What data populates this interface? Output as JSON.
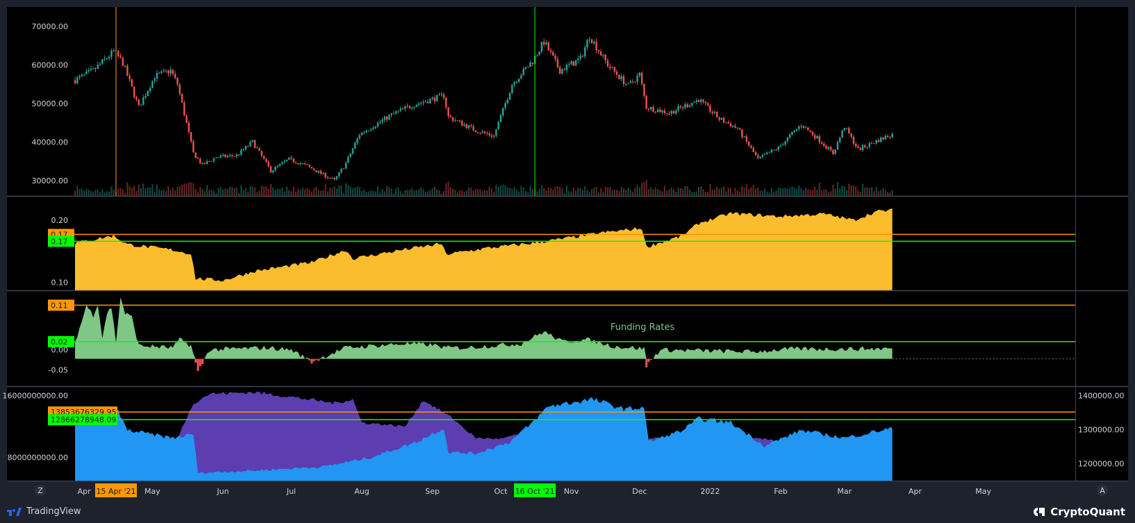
{
  "colors": {
    "background": "#000000",
    "frame": "#1e222d",
    "separator": "#434651",
    "candle_up": "#26a69a",
    "candle_down": "#ef5350",
    "orange": "#ff9800",
    "green": "#00ff00",
    "yellow_fill": "#fbbd2e",
    "funding_fill": "#7ec784",
    "funding_neg": "#ef5350",
    "blue_fill": "#2196f3",
    "purple_fill": "#5c3eb0",
    "annotation_text": "#7ec784"
  },
  "chart_data": [
    {
      "type": "candlestick",
      "name": "price",
      "x_range": [
        "2021-03-28",
        "2022-05-31"
      ],
      "ylim": [
        26000,
        75000
      ],
      "yticks": [
        "70000.00",
        "60000.00",
        "50000.00",
        "40000.00",
        "30000.00"
      ],
      "ytick_values": [
        70000,
        60000,
        50000,
        40000,
        30000
      ],
      "close_anchors": [
        [
          "2021-03-28",
          56000
        ],
        [
          "2021-04-05",
          58500
        ],
        [
          "2021-04-14",
          63500
        ],
        [
          "2021-04-18",
          60500
        ],
        [
          "2021-04-25",
          49000
        ],
        [
          "2021-05-02",
          57000
        ],
        [
          "2021-05-09",
          58500
        ],
        [
          "2021-05-12",
          55000
        ],
        [
          "2021-05-19",
          37000
        ],
        [
          "2021-05-23",
          34000
        ],
        [
          "2021-05-29",
          36000
        ],
        [
          "2021-06-07",
          36500
        ],
        [
          "2021-06-14",
          40000
        ],
        [
          "2021-06-22",
          32500
        ],
        [
          "2021-06-30",
          35500
        ],
        [
          "2021-07-07",
          34000
        ],
        [
          "2021-07-20",
          30000
        ],
        [
          "2021-07-25",
          34500
        ],
        [
          "2021-07-31",
          42000
        ],
        [
          "2021-08-07",
          44500
        ],
        [
          "2021-08-14",
          47000
        ],
        [
          "2021-08-23",
          49500
        ],
        [
          "2021-09-06",
          52000
        ],
        [
          "2021-09-08",
          46500
        ],
        [
          "2021-09-20",
          43000
        ],
        [
          "2021-09-28",
          41500
        ],
        [
          "2021-10-06",
          55000
        ],
        [
          "2021-10-15",
          61000
        ],
        [
          "2021-10-20",
          66000
        ],
        [
          "2021-10-27",
          58500
        ],
        [
          "2021-11-05",
          61500
        ],
        [
          "2021-11-09",
          67500
        ],
        [
          "2021-11-17",
          60000
        ],
        [
          "2021-11-26",
          54500
        ],
        [
          "2021-12-01",
          57500
        ],
        [
          "2021-12-04",
          49000
        ],
        [
          "2021-12-14",
          47500
        ],
        [
          "2021-12-27",
          51000
        ],
        [
          "2022-01-05",
          46000
        ],
        [
          "2022-01-13",
          43500
        ],
        [
          "2022-01-22",
          35500
        ],
        [
          "2022-01-31",
          38500
        ],
        [
          "2022-02-10",
          44500
        ],
        [
          "2022-02-18",
          40500
        ],
        [
          "2022-02-24",
          37000
        ],
        [
          "2022-03-01",
          44000
        ],
        [
          "2022-03-07",
          38000
        ],
        [
          "2022-03-16",
          40500
        ],
        [
          "2022-03-22",
          42000
        ]
      ],
      "markers": [
        {
          "date": "2021-04-15",
          "label": "15 Apr '21",
          "color": "#ff9800"
        },
        {
          "date": "2021-10-16",
          "label": "16 Oct '21",
          "color": "#00ff00"
        }
      ]
    },
    {
      "type": "area",
      "name": "pane-2",
      "ylim": [
        0.087,
        0.238
      ],
      "yticks": [
        "0.20",
        "0.10"
      ],
      "ytick_values": [
        0.2,
        0.1
      ],
      "reference_lines": [
        {
          "value": 0.177,
          "label": "0.17",
          "color": "#ff9800"
        },
        {
          "value": 0.166,
          "label": "0.17",
          "color": "#00ff00"
        }
      ],
      "anchors": [
        [
          "2021-03-28",
          0.163
        ],
        [
          "2021-04-14",
          0.175
        ],
        [
          "2021-04-20",
          0.161
        ],
        [
          "2021-05-10",
          0.152
        ],
        [
          "2021-05-18",
          0.146
        ],
        [
          "2021-05-20",
          0.106
        ],
        [
          "2021-06-01",
          0.103
        ],
        [
          "2021-06-15",
          0.118
        ],
        [
          "2021-07-10",
          0.132
        ],
        [
          "2021-07-25",
          0.152
        ],
        [
          "2021-07-28",
          0.138
        ],
        [
          "2021-08-20",
          0.153
        ],
        [
          "2021-09-05",
          0.162
        ],
        [
          "2021-09-07",
          0.145
        ],
        [
          "2021-09-25",
          0.155
        ],
        [
          "2021-10-15",
          0.163
        ],
        [
          "2021-11-01",
          0.172
        ],
        [
          "2021-11-15",
          0.18
        ],
        [
          "2021-12-02",
          0.187
        ],
        [
          "2021-12-04",
          0.157
        ],
        [
          "2021-12-20",
          0.175
        ],
        [
          "2021-12-27",
          0.195
        ],
        [
          "2022-01-10",
          0.211
        ],
        [
          "2022-01-31",
          0.206
        ],
        [
          "2022-02-20",
          0.21
        ],
        [
          "2022-03-05",
          0.2
        ],
        [
          "2022-03-15",
          0.214
        ],
        [
          "2022-03-22",
          0.216
        ]
      ]
    },
    {
      "type": "area",
      "name": "Funding Rates",
      "ylim": [
        -0.09,
        0.145
      ],
      "yticks": [
        "0.00",
        "-0.05"
      ],
      "ytick_values": [
        0.0,
        -0.05
      ],
      "reference_lines": [
        {
          "value": 0.11,
          "label": "0.11",
          "color": "#ff9800"
        },
        {
          "value": 0.02,
          "label": "0.02",
          "color": "#00ff00"
        }
      ],
      "baseline": -0.0225,
      "anchors": [
        [
          "2021-03-28",
          0.02
        ],
        [
          "2021-03-31",
          0.07
        ],
        [
          "2021-04-02",
          0.11
        ],
        [
          "2021-04-05",
          0.085
        ],
        [
          "2021-04-07",
          0.115
        ],
        [
          "2021-04-09",
          0.03
        ],
        [
          "2021-04-11",
          0.09
        ],
        [
          "2021-04-13",
          0.105
        ],
        [
          "2021-04-15",
          0.02
        ],
        [
          "2021-04-17",
          0.13
        ],
        [
          "2021-04-19",
          0.09
        ],
        [
          "2021-04-22",
          0.08
        ],
        [
          "2021-04-25",
          0.01
        ],
        [
          "2021-05-10",
          0.005
        ],
        [
          "2021-05-13",
          0.025
        ],
        [
          "2021-05-18",
          0.01
        ],
        [
          "2021-05-21",
          -0.055
        ],
        [
          "2021-05-26",
          0.0
        ],
        [
          "2021-06-20",
          0.005
        ],
        [
          "2021-07-01",
          0.0
        ],
        [
          "2021-07-10",
          -0.03
        ],
        [
          "2021-07-25",
          0.005
        ],
        [
          "2021-08-20",
          0.015
        ],
        [
          "2021-09-01",
          0.012
        ],
        [
          "2021-09-07",
          0.005
        ],
        [
          "2021-09-15",
          0.005
        ],
        [
          "2021-10-10",
          0.015
        ],
        [
          "2021-10-20",
          0.045
        ],
        [
          "2021-10-28",
          0.02
        ],
        [
          "2021-11-08",
          0.025
        ],
        [
          "2021-11-20",
          0.008
        ],
        [
          "2021-12-03",
          0.003
        ],
        [
          "2021-12-04",
          -0.04
        ],
        [
          "2021-12-10",
          0.0
        ],
        [
          "2022-01-20",
          -0.005
        ],
        [
          "2022-02-05",
          0.002
        ],
        [
          "2022-03-01",
          0.002
        ],
        [
          "2022-03-22",
          0.003
        ]
      ],
      "annotation": "Funding Rates"
    },
    {
      "type": "area",
      "name": "pane-4",
      "ylim_left": [
        5000000000,
        17100000000
      ],
      "yticks_left": [
        "16000000000.00",
        "8000000000.00"
      ],
      "ytick_values_left": [
        16000000000,
        8000000000
      ],
      "ylim_right": [
        1150000000,
        1425000000
      ],
      "yticks_right": [
        "1400000.00",
        "1300000.00",
        "1200000.00"
      ],
      "ytick_values_right": [
        1400000000,
        1300000000,
        1200000000
      ],
      "reference_lines": [
        {
          "value": 13853676329.95,
          "label": "13853676329.95",
          "color": "#ff9800"
        },
        {
          "value": 12866278948.09,
          "label": "12866278948.09",
          "color": "#00ff00"
        }
      ],
      "blue_anchors": [
        [
          "2021-03-28",
          12500000000
        ],
        [
          "2021-04-05",
          12800000000
        ],
        [
          "2021-04-15",
          14400000000
        ],
        [
          "2021-04-20",
          11500000000
        ],
        [
          "2021-05-10",
          10500000000
        ],
        [
          "2021-05-19",
          11000000000
        ],
        [
          "2021-05-21",
          6000000000
        ],
        [
          "2021-06-15",
          6300000000
        ],
        [
          "2021-07-15",
          6800000000
        ],
        [
          "2021-08-05",
          8000000000
        ],
        [
          "2021-08-25",
          10000000000
        ],
        [
          "2021-09-06",
          11800000000
        ],
        [
          "2021-09-08",
          8700000000
        ],
        [
          "2021-09-20",
          8500000000
        ],
        [
          "2021-10-05",
          10000000000
        ],
        [
          "2021-10-15",
          12500000000
        ],
        [
          "2021-10-22",
          14600000000
        ],
        [
          "2021-11-10",
          15500000000
        ],
        [
          "2021-11-25",
          14200000000
        ],
        [
          "2021-12-03",
          14500000000
        ],
        [
          "2021-12-05",
          10000000000
        ],
        [
          "2021-12-20",
          11500000000
        ],
        [
          "2021-12-27",
          13000000000
        ],
        [
          "2022-01-10",
          12500000000
        ],
        [
          "2022-01-25",
          9500000000
        ],
        [
          "2022-02-10",
          11500000000
        ],
        [
          "2022-03-01",
          10500000000
        ],
        [
          "2022-03-22",
          11800000000
        ]
      ],
      "purple_anchors": [
        [
          "2021-05-12",
          10500000000
        ],
        [
          "2021-05-19",
          15000000000
        ],
        [
          "2021-05-26",
          16200000000
        ],
        [
          "2021-06-15",
          16400000000
        ],
        [
          "2021-07-01",
          15800000000
        ],
        [
          "2021-07-20",
          15000000000
        ],
        [
          "2021-07-28",
          15500000000
        ],
        [
          "2021-08-01",
          12500000000
        ],
        [
          "2021-08-20",
          12000000000
        ],
        [
          "2021-08-28",
          15400000000
        ],
        [
          "2021-09-10",
          13000000000
        ],
        [
          "2021-09-20",
          10500000000
        ],
        [
          "2021-10-01",
          10400000000
        ],
        [
          "2021-10-10",
          11000000000
        ]
      ],
      "purple_anchors_2": [
        [
          "2021-12-05",
          10400000000
        ],
        [
          "2021-12-25",
          10800000000
        ],
        [
          "2022-01-15",
          10500000000
        ],
        [
          "2022-01-28",
          10300000000
        ],
        [
          "2022-02-10",
          10000000000
        ]
      ]
    }
  ],
  "x_axis": {
    "labels": [
      {
        "text": "Apr",
        "date": "2021-04-01"
      },
      {
        "text": "May",
        "date": "2021-05-01"
      },
      {
        "text": "Jun",
        "date": "2021-06-01"
      },
      {
        "text": "Jul",
        "date": "2021-07-01"
      },
      {
        "text": "Aug",
        "date": "2021-08-01"
      },
      {
        "text": "Sep",
        "date": "2021-09-01"
      },
      {
        "text": "Oct",
        "date": "2021-10-01"
      },
      {
        "text": "Nov",
        "date": "2021-11-01"
      },
      {
        "text": "Dec",
        "date": "2021-12-01"
      },
      {
        "text": "2022",
        "date": "2022-01-01"
      },
      {
        "text": "Feb",
        "date": "2022-02-01"
      },
      {
        "text": "Mar",
        "date": "2022-03-01"
      },
      {
        "text": "Apr",
        "date": "2022-04-01"
      },
      {
        "text": "May",
        "date": "2022-05-01"
      }
    ],
    "left_button": "Z",
    "right_button": "A"
  },
  "footer": {
    "left_brand": "TradingView",
    "right_brand": "CryptoQuant"
  }
}
